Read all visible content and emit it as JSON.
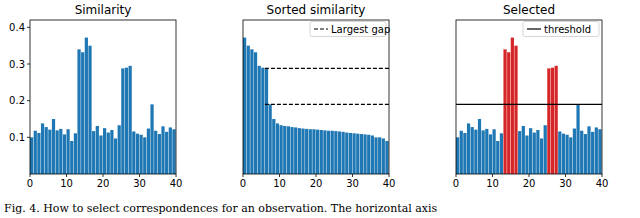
{
  "chart_data": [
    {
      "type": "bar",
      "title": "Similarity",
      "x": [
        0,
        1,
        2,
        3,
        4,
        5,
        6,
        7,
        8,
        9,
        10,
        11,
        12,
        13,
        14,
        15,
        16,
        17,
        18,
        19,
        20,
        21,
        22,
        23,
        24,
        25,
        26,
        27,
        28,
        29,
        30,
        31,
        32,
        33,
        34,
        35,
        36,
        37,
        38,
        39
      ],
      "values": [
        0.1,
        0.118,
        0.112,
        0.138,
        0.128,
        0.121,
        0.15,
        0.119,
        0.123,
        0.108,
        0.122,
        0.09,
        0.111,
        0.34,
        0.332,
        0.372,
        0.35,
        0.117,
        0.131,
        0.105,
        0.125,
        0.113,
        0.12,
        0.097,
        0.133,
        0.288,
        0.29,
        0.295,
        0.116,
        0.11,
        0.107,
        0.1,
        0.124,
        0.19,
        0.118,
        0.109,
        0.13,
        0.115,
        0.127,
        0.122
      ],
      "color": "#1f77b4",
      "xlim": [
        0,
        40
      ],
      "xticks": [
        0,
        10,
        20,
        30,
        40
      ],
      "ylim": [
        0,
        0.42
      ],
      "yticks": [
        0.1,
        0.2,
        0.3,
        0.4
      ]
    },
    {
      "type": "bar",
      "title": "Sorted similarity",
      "x": [
        0,
        1,
        2,
        3,
        4,
        5,
        6,
        7,
        8,
        9,
        10,
        11,
        12,
        13,
        14,
        15,
        16,
        17,
        18,
        19,
        20,
        21,
        22,
        23,
        24,
        25,
        26,
        27,
        28,
        29,
        30,
        31,
        32,
        33,
        34,
        35,
        36,
        37,
        38,
        39
      ],
      "values": [
        0.372,
        0.35,
        0.34,
        0.332,
        0.295,
        0.29,
        0.288,
        0.19,
        0.15,
        0.138,
        0.133,
        0.131,
        0.13,
        0.128,
        0.127,
        0.125,
        0.124,
        0.123,
        0.122,
        0.122,
        0.121,
        0.12,
        0.119,
        0.118,
        0.118,
        0.117,
        0.116,
        0.115,
        0.113,
        0.112,
        0.111,
        0.11,
        0.109,
        0.108,
        0.107,
        0.105,
        0.1,
        0.1,
        0.097,
        0.09
      ],
      "color": "#1f77b4",
      "xlim": [
        0,
        40
      ],
      "xticks": [
        0,
        10,
        20,
        30,
        40
      ],
      "ylim": [
        0,
        0.42
      ],
      "tick_labels": "x",
      "reference_lines": {
        "name": "Largest gap",
        "y": [
          0.288,
          0.19
        ],
        "x_start": 6,
        "line_style": "dashed",
        "color": "#000000"
      },
      "legend": "upper right"
    },
    {
      "type": "bar",
      "title": "Selected",
      "x": [
        0,
        1,
        2,
        3,
        4,
        5,
        6,
        7,
        8,
        9,
        10,
        11,
        12,
        13,
        14,
        15,
        16,
        17,
        18,
        19,
        20,
        21,
        22,
        23,
        24,
        25,
        26,
        27,
        28,
        29,
        30,
        31,
        32,
        33,
        34,
        35,
        36,
        37,
        38,
        39
      ],
      "values": [
        0.1,
        0.118,
        0.112,
        0.138,
        0.128,
        0.121,
        0.15,
        0.119,
        0.123,
        0.108,
        0.122,
        0.09,
        0.111,
        0.34,
        0.332,
        0.372,
        0.35,
        0.117,
        0.131,
        0.105,
        0.125,
        0.113,
        0.12,
        0.097,
        0.133,
        0.288,
        0.29,
        0.295,
        0.116,
        0.11,
        0.107,
        0.1,
        0.124,
        0.19,
        0.118,
        0.109,
        0.13,
        0.115,
        0.127,
        0.122
      ],
      "colors": [
        "#1f77b4",
        "#1f77b4",
        "#1f77b4",
        "#1f77b4",
        "#1f77b4",
        "#1f77b4",
        "#1f77b4",
        "#1f77b4",
        "#1f77b4",
        "#1f77b4",
        "#1f77b4",
        "#1f77b4",
        "#1f77b4",
        "#d62728",
        "#d62728",
        "#d62728",
        "#d62728",
        "#1f77b4",
        "#1f77b4",
        "#1f77b4",
        "#1f77b4",
        "#1f77b4",
        "#1f77b4",
        "#1f77b4",
        "#1f77b4",
        "#d62728",
        "#d62728",
        "#d62728",
        "#1f77b4",
        "#1f77b4",
        "#1f77b4",
        "#1f77b4",
        "#1f77b4",
        "#1f77b4",
        "#1f77b4",
        "#1f77b4",
        "#1f77b4",
        "#1f77b4",
        "#1f77b4",
        "#1f77b4"
      ],
      "xlim": [
        0,
        40
      ],
      "xticks": [
        0,
        10,
        20,
        30,
        40
      ],
      "ylim": [
        0,
        0.42
      ],
      "tick_labels": "x",
      "reference_lines": {
        "name": "threshold",
        "y": [
          0.19
        ],
        "line_style": "solid",
        "color": "#000000"
      },
      "legend": "upper right"
    }
  ],
  "caption": "Fig. 4.  How to select correspondences for an observation. The horizontal axis"
}
